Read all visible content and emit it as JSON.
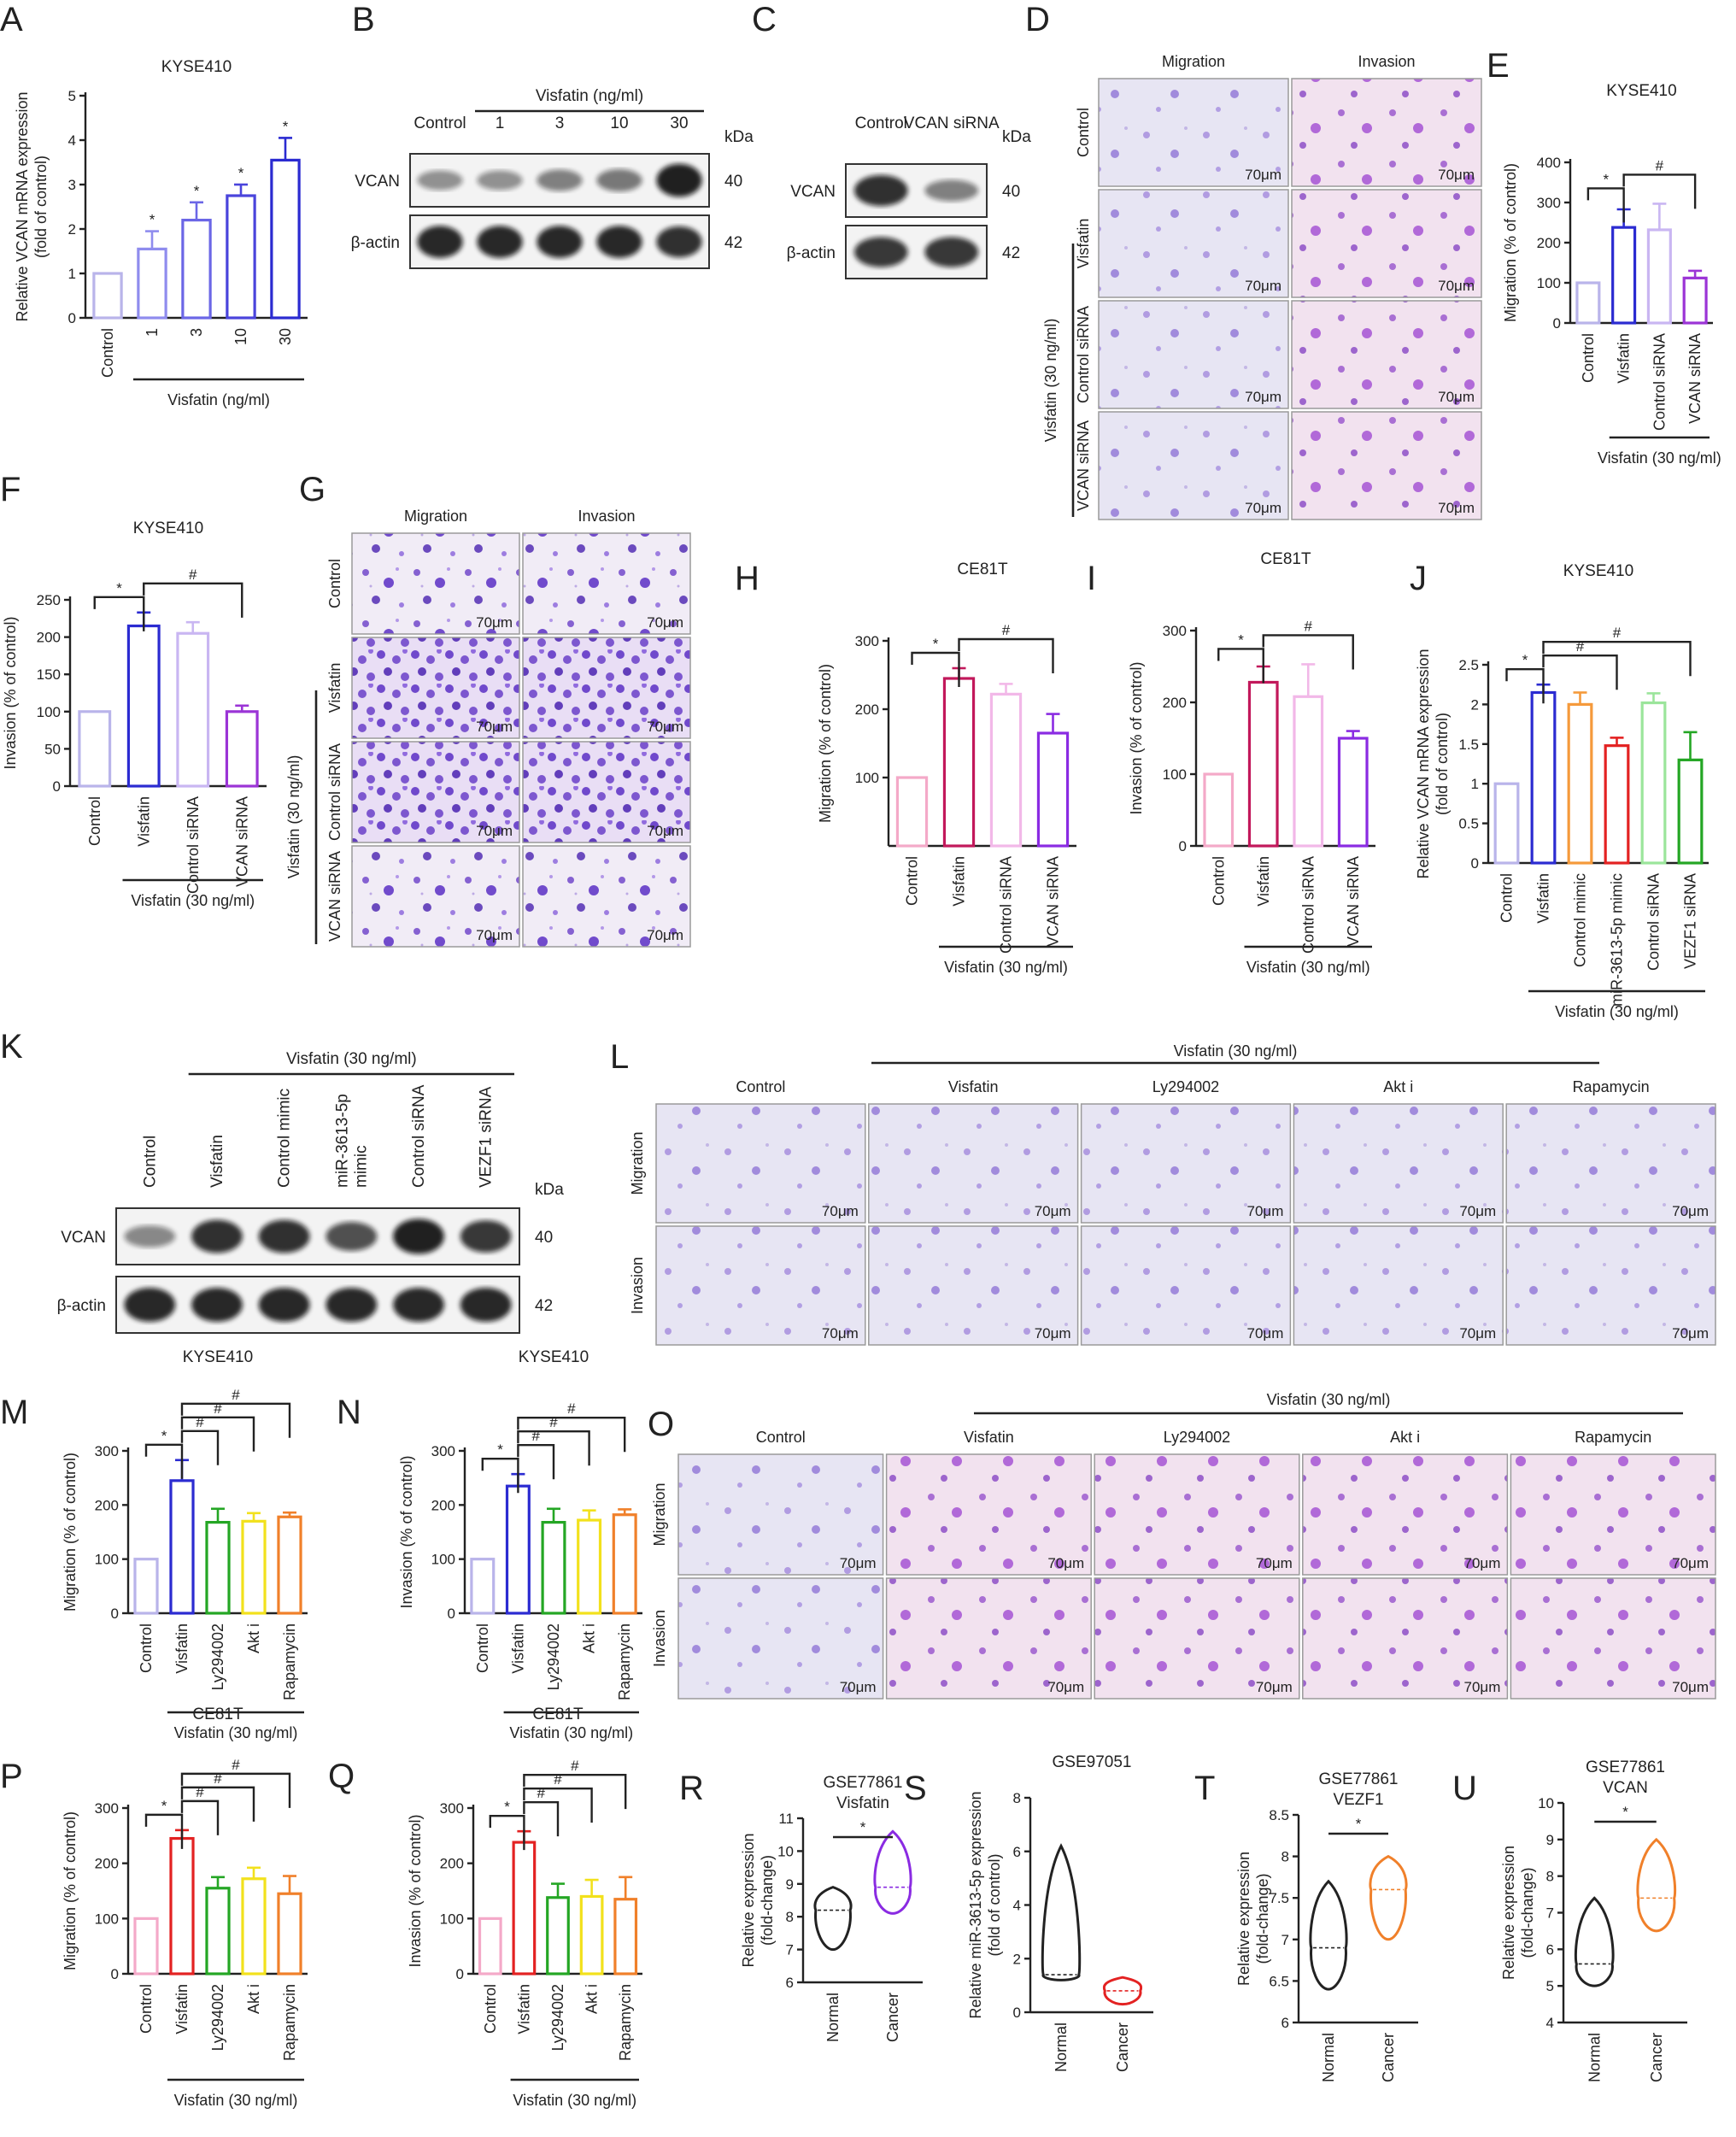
{
  "panels": {
    "A": {
      "label": "A",
      "title": "KYSE410",
      "ylabel": "Relative VCAN mRNA expression",
      "ylabel2": "(fold of control)",
      "group": "Visfatin (ng/ml)"
    },
    "B": {
      "label": "B",
      "treatment": "Visfatin (ng/ml)",
      "lanes": [
        "Control",
        "1",
        "3",
        "10",
        "30"
      ],
      "rows": [
        {
          "name": "VCAN",
          "kda": "40"
        },
        {
          "name": "β-actin",
          "kda": "42"
        }
      ],
      "kda": "kDa"
    },
    "C": {
      "label": "C",
      "lanes": [
        "Control",
        "VCAN siRNA"
      ],
      "rows": [
        {
          "name": "VCAN",
          "kda": "40"
        },
        {
          "name": "β-actin",
          "kda": "42"
        }
      ],
      "kda": "kDa"
    },
    "D": {
      "label": "D",
      "cols": [
        "Migration",
        "Invasion"
      ],
      "rows": [
        "Control",
        "Visfatin",
        "Control siRNA",
        "VCAN siRNA"
      ],
      "group": "Visfatin (30 ng/ml)"
    },
    "E": {
      "label": "E",
      "title": "KYSE410",
      "ylabel": "Migration (% of control)",
      "group": "Visfatin (30 ng/ml)"
    },
    "F": {
      "label": "F",
      "title": "KYSE410",
      "ylabel": "Invasion (% of control)",
      "group": "Visfatin (30 ng/ml)"
    },
    "G": {
      "label": "G",
      "cols": [
        "Migration",
        "Invasion"
      ],
      "rows": [
        "Control",
        "Visfatin",
        "Control siRNA",
        "VCAN siRNA"
      ],
      "group": "Visfatin (30 ng/ml)"
    },
    "H": {
      "label": "H",
      "title": "CE81T",
      "ylabel": "Migration (% of control)",
      "group": "Visfatin (30 ng/ml)"
    },
    "I": {
      "label": "I",
      "title": "CE81T",
      "ylabel": "Invasion (% of control)",
      "group": "Visfatin (30 ng/ml)"
    },
    "J": {
      "label": "J",
      "title": "KYSE410",
      "ylabel": "Relative VCAN mRNA expression",
      "ylabel2": "(fold of control)",
      "group": "Visfatin (30 ng/ml)"
    },
    "K": {
      "label": "K",
      "treatment": "Visfatin (30 ng/ml)",
      "lanes": [
        "Control",
        "Visfatin",
        "Control mimic",
        "miR-3613-5p mimic",
        "Control siRNA",
        "VEZF1 siRNA"
      ],
      "rows": [
        {
          "name": "VCAN",
          "kda": "40"
        },
        {
          "name": "β-actin",
          "kda": "42"
        }
      ],
      "kda": "kDa"
    },
    "L": {
      "label": "L",
      "treatment": "Visfatin (30 ng/ml)",
      "cols": [
        "Control",
        "Visfatin",
        "Ly294002",
        "Akt i",
        "Rapamycin"
      ],
      "rows": [
        "Migration",
        "Invasion"
      ]
    },
    "M": {
      "label": "M",
      "title": "KYSE410",
      "ylabel": "Migration (% of control)",
      "group": "Visfatin (30 ng/ml)"
    },
    "N": {
      "label": "N",
      "title": "KYSE410",
      "ylabel": "Invasion (% of control)",
      "group": "Visfatin (30 ng/ml)"
    },
    "O": {
      "label": "O",
      "treatment": "Visfatin (30 ng/ml)",
      "cols": [
        "Control",
        "Visfatin",
        "Ly294002",
        "Akt i",
        "Rapamycin"
      ],
      "rows": [
        "Migration",
        "Invasion"
      ]
    },
    "P": {
      "label": "P",
      "title": "CE81T",
      "ylabel": "Migration (% of control)",
      "group": "Visfatin (30 ng/ml)"
    },
    "Q": {
      "label": "Q",
      "title": "CE81T",
      "ylabel": "Invasion (% of control)",
      "group": "Visfatin (30 ng/ml)"
    },
    "R": {
      "label": "R",
      "title": "GSE77861",
      "subtitle": "Visfatin",
      "ylabel": "Relative expression",
      "ylabel2": "(fold-change)"
    },
    "S": {
      "label": "S",
      "title": "GSE97051",
      "ylabel": "Relative miR-3613-5p expression",
      "ylabel2": "(fold of control)"
    },
    "T": {
      "label": "T",
      "title": "GSE77861",
      "subtitle": "VEZF1",
      "ylabel": "Relative expression",
      "ylabel2": "(fold-change)"
    },
    "U": {
      "label": "U",
      "title": "GSE77861",
      "subtitle": "VCAN",
      "ylabel": "Relative expression",
      "ylabel2": "(fold-change)"
    }
  },
  "scale_bar": "70μm",
  "colors": {
    "light_purple": "#b9b4ea",
    "blue": "#2b2bd1",
    "lavender": "#c9b6f2",
    "violet": "#9b34d6",
    "pink": "#f4a9c8",
    "crimson": "#c2185b",
    "light_pink": "#f2b8e8",
    "purple": "#8a2be2",
    "orange": "#f59a3b",
    "red": "#e32222",
    "green_light": "#9be59b",
    "green": "#24a624",
    "yellow": "#f2e11c",
    "dark_orange": "#f0802a",
    "stain": "#5b2fc4",
    "accent_red": "#e53935"
  },
  "chart_data": [
    {
      "id": "A",
      "type": "bar",
      "categories": [
        "Control",
        "1",
        "3",
        "10",
        "30"
      ],
      "values": [
        1.0,
        1.55,
        2.2,
        2.75,
        3.55
      ],
      "errors": [
        0,
        0.4,
        0.4,
        0.25,
        0.5
      ],
      "ylim": [
        0,
        5
      ],
      "yticks": [
        0,
        1,
        2,
        3,
        4,
        5
      ],
      "sig": [
        "",
        "*",
        "*",
        "*",
        "*"
      ],
      "colors": [
        "#b9b4ea",
        "#8f8cee",
        "#6b66e6",
        "#4a44dc",
        "#2b2bd1"
      ]
    },
    {
      "id": "E",
      "type": "bar",
      "categories": [
        "Control",
        "Visfatin",
        "Control siRNA",
        "VCAN siRNA"
      ],
      "values": [
        100,
        238,
        232,
        112
      ],
      "errors": [
        0,
        45,
        65,
        18
      ],
      "ylim": [
        0,
        400
      ],
      "yticks": [
        0,
        100,
        200,
        300,
        400
      ],
      "colors": [
        "#b9b4ea",
        "#2b2bd1",
        "#c9b6f2",
        "#9b34d6"
      ],
      "brackets": [
        {
          "from": 0,
          "to": 1,
          "sym": "*"
        },
        {
          "from": 1,
          "to": 3,
          "sym": "#"
        }
      ]
    },
    {
      "id": "F",
      "type": "bar",
      "categories": [
        "Control",
        "Visfatin",
        "Control siRNA",
        "VCAN siRNA"
      ],
      "values": [
        100,
        215,
        205,
        100
      ],
      "errors": [
        0,
        18,
        15,
        8
      ],
      "ylim": [
        0,
        250
      ],
      "yticks": [
        0,
        50,
        100,
        150,
        200,
        250
      ],
      "colors": [
        "#b9b4ea",
        "#2b2bd1",
        "#c9b6f2",
        "#9b34d6"
      ],
      "brackets": [
        {
          "from": 0,
          "to": 1,
          "sym": "*"
        },
        {
          "from": 1,
          "to": 3,
          "sym": "#"
        }
      ]
    },
    {
      "id": "H",
      "type": "bar",
      "categories": [
        "Control",
        "Visfatin",
        "Control siRNA",
        "VCAN siRNA"
      ],
      "values": [
        100,
        245,
        222,
        165
      ],
      "errors": [
        0,
        15,
        15,
        28
      ],
      "ylim": [
        0,
        300
      ],
      "yticks": [
        100,
        200,
        300
      ],
      "colors": [
        "#f4a9c8",
        "#c2185b",
        "#f2b8e8",
        "#8a2be2"
      ],
      "brackets": [
        {
          "from": 0,
          "to": 1,
          "sym": "*"
        },
        {
          "from": 1,
          "to": 3,
          "sym": "#"
        }
      ]
    },
    {
      "id": "I",
      "type": "bar",
      "categories": [
        "Control",
        "Visfatin",
        "Control siRNA",
        "VCAN siRNA"
      ],
      "values": [
        100,
        228,
        208,
        150
      ],
      "errors": [
        0,
        22,
        45,
        10
      ],
      "ylim": [
        0,
        300
      ],
      "yticks": [
        0,
        100,
        200,
        300
      ],
      "colors": [
        "#f4a9c8",
        "#c2185b",
        "#f2b8e8",
        "#8a2be2"
      ],
      "brackets": [
        {
          "from": 0,
          "to": 1,
          "sym": "*"
        },
        {
          "from": 1,
          "to": 3,
          "sym": "#"
        }
      ]
    },
    {
      "id": "J",
      "type": "bar",
      "categories": [
        "Control",
        "Visfatin",
        "Control mimic",
        "miR-3613-5p mimic",
        "Control siRNA",
        "VEZF1 siRNA"
      ],
      "values": [
        1.0,
        2.15,
        2.0,
        1.48,
        2.02,
        1.3
      ],
      "errors": [
        0,
        0.1,
        0.15,
        0.1,
        0.12,
        0.35
      ],
      "ylim": [
        0,
        2.5
      ],
      "yticks": [
        0,
        0.5,
        1.0,
        1.5,
        2.0,
        2.5
      ],
      "colors": [
        "#b9b4ea",
        "#2b2bd1",
        "#f59a3b",
        "#e32222",
        "#9be59b",
        "#24a624"
      ],
      "brackets": [
        {
          "from": 0,
          "to": 1,
          "sym": "*"
        },
        {
          "from": 1,
          "to": 3,
          "sym": "#"
        },
        {
          "from": 1,
          "to": 5,
          "sym": "#"
        }
      ]
    },
    {
      "id": "M",
      "type": "bar",
      "categories": [
        "Control",
        "Visfatin",
        "Ly294002",
        "Akt i",
        "Rapamycin"
      ],
      "values": [
        100,
        245,
        168,
        170,
        178
      ],
      "errors": [
        0,
        38,
        25,
        15,
        8
      ],
      "ylim": [
        0,
        300
      ],
      "yticks": [
        0,
        100,
        200,
        300
      ],
      "colors": [
        "#b9b4ea",
        "#2b2bd1",
        "#24a624",
        "#f2e11c",
        "#f0802a"
      ],
      "brackets": [
        {
          "from": 0,
          "to": 1,
          "sym": "*"
        },
        {
          "from": 1,
          "to": 2,
          "sym": "#"
        },
        {
          "from": 1,
          "to": 3,
          "sym": "#"
        },
        {
          "from": 1,
          "to": 4,
          "sym": "#"
        }
      ]
    },
    {
      "id": "N",
      "type": "bar",
      "categories": [
        "Control",
        "Visfatin",
        "Ly294002",
        "Akt i",
        "Rapamycin"
      ],
      "values": [
        100,
        235,
        168,
        172,
        182
      ],
      "errors": [
        0,
        22,
        25,
        18,
        10
      ],
      "ylim": [
        0,
        300
      ],
      "yticks": [
        0,
        100,
        200,
        300
      ],
      "colors": [
        "#b9b4ea",
        "#2b2bd1",
        "#24a624",
        "#f2e11c",
        "#f0802a"
      ],
      "brackets": [
        {
          "from": 0,
          "to": 1,
          "sym": "*"
        },
        {
          "from": 1,
          "to": 2,
          "sym": "#"
        },
        {
          "from": 1,
          "to": 3,
          "sym": "#"
        },
        {
          "from": 1,
          "to": 4,
          "sym": "#"
        }
      ]
    },
    {
      "id": "P",
      "type": "bar",
      "categories": [
        "Control",
        "Visfatin",
        "Ly294002",
        "Akt i",
        "Rapamycin"
      ],
      "values": [
        100,
        245,
        155,
        172,
        145
      ],
      "errors": [
        0,
        15,
        20,
        20,
        32
      ],
      "ylim": [
        0,
        300
      ],
      "yticks": [
        0,
        100,
        200,
        300
      ],
      "colors": [
        "#f4a9c8",
        "#e32222",
        "#24a624",
        "#f2e11c",
        "#f0802a"
      ],
      "brackets": [
        {
          "from": 0,
          "to": 1,
          "sym": "*"
        },
        {
          "from": 1,
          "to": 2,
          "sym": "#"
        },
        {
          "from": 1,
          "to": 3,
          "sym": "#"
        },
        {
          "from": 1,
          "to": 4,
          "sym": "#"
        }
      ]
    },
    {
      "id": "Q",
      "type": "bar",
      "categories": [
        "Control",
        "Visfatin",
        "Ly294002",
        "Akt i",
        "Rapamycin"
      ],
      "values": [
        100,
        238,
        138,
        140,
        135
      ],
      "errors": [
        0,
        20,
        25,
        30,
        40
      ],
      "ylim": [
        0,
        300
      ],
      "yticks": [
        0,
        100,
        200,
        300
      ],
      "colors": [
        "#f4a9c8",
        "#e32222",
        "#24a624",
        "#f2e11c",
        "#f0802a"
      ],
      "brackets": [
        {
          "from": 0,
          "to": 1,
          "sym": "*"
        },
        {
          "from": 1,
          "to": 2,
          "sym": "#"
        },
        {
          "from": 1,
          "to": 3,
          "sym": "#"
        },
        {
          "from": 1,
          "to": 4,
          "sym": "#"
        }
      ]
    },
    {
      "id": "R",
      "type": "violin",
      "categories": [
        "Normal",
        "Cancer"
      ],
      "ylim": [
        6,
        11
      ],
      "yticks": [
        6,
        7,
        8,
        9,
        10,
        11
      ],
      "groups": [
        {
          "min": 7.0,
          "max": 8.9,
          "median": 8.2,
          "color": "#222222"
        },
        {
          "min": 8.1,
          "max": 10.6,
          "median": 8.9,
          "color": "#8a2be2"
        }
      ],
      "sig": "*"
    },
    {
      "id": "S",
      "type": "violin",
      "categories": [
        "Normal",
        "Cancer"
      ],
      "ylim": [
        0,
        8
      ],
      "yticks": [
        0,
        2,
        4,
        6,
        8
      ],
      "groups": [
        {
          "min": 1.2,
          "max": 6.2,
          "median": 1.4,
          "color": "#222222"
        },
        {
          "min": 0.3,
          "max": 1.3,
          "median": 0.8,
          "color": "#e32222"
        }
      ],
      "sig": ""
    },
    {
      "id": "T",
      "type": "violin",
      "categories": [
        "Normal",
        "Cancer"
      ],
      "ylim": [
        6.0,
        8.5
      ],
      "yticks": [
        6.0,
        6.5,
        7.0,
        7.5,
        8.0,
        8.5
      ],
      "groups": [
        {
          "min": 6.4,
          "max": 7.7,
          "median": 6.9,
          "color": "#222222"
        },
        {
          "min": 7.0,
          "max": 8.0,
          "median": 7.6,
          "color": "#f0802a"
        }
      ],
      "sig": "*"
    },
    {
      "id": "U",
      "type": "violin",
      "categories": [
        "Normal",
        "Cancer"
      ],
      "ylim": [
        4,
        10
      ],
      "yticks": [
        4,
        5,
        6,
        7,
        8,
        9,
        10
      ],
      "groups": [
        {
          "min": 5.0,
          "max": 7.4,
          "median": 5.6,
          "color": "#222222"
        },
        {
          "min": 6.5,
          "max": 9.0,
          "median": 7.4,
          "color": "#f0802a"
        }
      ],
      "sig": "*"
    }
  ]
}
